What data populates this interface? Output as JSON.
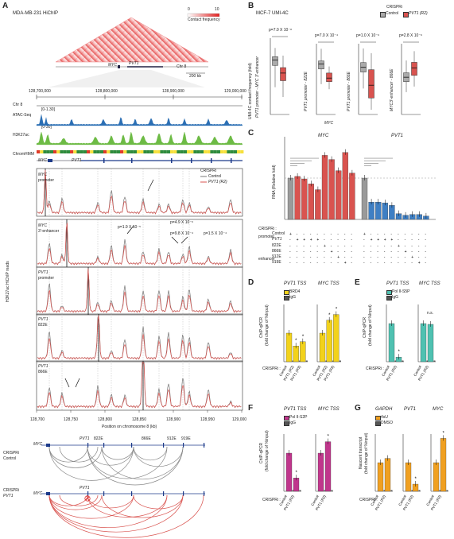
{
  "panels": {
    "A": "A",
    "B": "B",
    "C": "C",
    "D": "D",
    "E": "E",
    "F": "F",
    "G": "G"
  },
  "panelA": {
    "title": "MDA-MB-231 HiChIP",
    "legend_min": "0",
    "legend_max": "10",
    "legend_label": "Contact frequency",
    "gene_myc": "MYC",
    "gene_pvt1": "PVT1",
    "chr_label": "Chr 8",
    "scale_label": "200 kb",
    "ruler_ticks": [
      "128,700,000",
      "128,800,000",
      "128,900,000",
      "129,000,000"
    ],
    "tracks": [
      {
        "name": "Chr 8",
        "range": ""
      },
      {
        "name": "ATAC-Seq",
        "range": "[0-1.30]"
      },
      {
        "name": "H3K27ac",
        "range": "[0-30]"
      },
      {
        "name": "ChromHMM",
        "range": ""
      }
    ],
    "crispri_label": "CRISPRi",
    "legend_control": "Control",
    "legend_pvt1": "PVT1 (R2)",
    "ylabel": "H3K27ac HiChIP reads",
    "viewpoints": [
      {
        "gene": "MYC",
        "sub": "promoter"
      },
      {
        "gene": "MYC",
        "sub": "3'-enhancer"
      },
      {
        "gene": "PVT1",
        "sub": "promoter"
      },
      {
        "gene": "PVT1",
        "sub": "822E"
      },
      {
        "gene": "PVT1",
        "sub": "866E"
      }
    ],
    "pvals": [
      "p=1.9 X 10⁻⁵",
      "p=4.9 X 10⁻⁶",
      "p=9.8 X 10⁻⁴",
      "p=1.5 X 10⁻⁴"
    ],
    "x_ticks": [
      "128,700",
      "128,750",
      "128,800",
      "128,850",
      "128,900",
      "128,950",
      "129,000"
    ],
    "xlabel": "Position on chromosome 8 (kb)",
    "arc_gene_myc": "MYC",
    "arc_gene_pvt1": "PVT1",
    "enhancers": [
      "822E",
      "866E",
      "912E",
      "919E"
    ],
    "arc_control_label": [
      "CRISPRi",
      "Control"
    ],
    "arc_pvt1_label": [
      "CRISPRi",
      "PVT1"
    ]
  },
  "panelB": {
    "subtitle": "MCF-7 UMI-4C",
    "legend_title": "CRISPRi",
    "legend_control": "Control",
    "legend_pvt1": "PVT1 (R2)",
    "ylabel_main": "UMI-4C contact frequency (fold)",
    "plots": [
      {
        "pval": "p=7.0 X 10⁻⁸",
        "ylabel": "PVT1 promoter - MYC 3'-enhancer",
        "xlabel": "",
        "control": {
          "q1": 0.9,
          "med": 1.0,
          "q3": 1.06,
          "lo": 0.5,
          "hi": 1.22
        },
        "pvt1": {
          "q1": 0.62,
          "med": 0.76,
          "q3": 0.86,
          "lo": 0.32,
          "hi": 1.08
        },
        "ylim": [
          0,
          1.4
        ]
      },
      {
        "pval": "p=7.0 X 10⁻⁴",
        "ylabel": "PVT1 promoter - 822E",
        "xlabel": "MYC",
        "control": {
          "q1": 0.9,
          "med": 1.0,
          "q3": 1.06,
          "lo": 0.6,
          "hi": 1.3
        },
        "pvt1": {
          "q1": 0.65,
          "med": 0.72,
          "q3": 0.82,
          "lo": 0.5,
          "hi": 0.95
        },
        "ylim": [
          0,
          1.4
        ]
      },
      {
        "pval": "p=1.0 X 10⁻⁶",
        "ylabel": "PVT1 promoter - 866E",
        "xlabel": "",
        "control": {
          "q1": 0.9,
          "med": 1.0,
          "q3": 1.1,
          "lo": 0.55,
          "hi": 1.4
        },
        "pvt1": {
          "q1": 0.35,
          "med": 0.62,
          "q3": 0.95,
          "lo": 0.1,
          "hi": 1.3
        },
        "ylim": [
          0,
          1.5
        ]
      },
      {
        "pval": "p=2.8 X 10⁻⁶",
        "ylabel": "MYC3'-enhancer - 866E",
        "xlabel": "",
        "control": {
          "q1": 0.88,
          "med": 1.0,
          "q3": 1.12,
          "lo": 0.6,
          "hi": 1.45
        },
        "pvt1": {
          "q1": 1.05,
          "med": 1.25,
          "q3": 1.4,
          "lo": 0.75,
          "hi": 1.7
        },
        "ylim": [
          0,
          1.9
        ]
      }
    ]
  },
  "panelC": {
    "title_myc": "MYC",
    "title_pvt1": "PVT1",
    "ylabel": "RNA (Relative fold)",
    "row_labels": [
      "CRISPRi :",
      "promoter",
      "Control",
      "PVT1",
      "enhancer",
      "822E",
      "866E",
      "912E",
      "919E"
    ],
    "chart_data": {
      "type": "bar",
      "groups": [
        {
          "name": "MYC",
          "values": [
            1.0,
            1.04,
            0.98,
            0.86,
            0.72,
            1.55,
            1.45,
            1.18,
            1.62,
            1.12
          ],
          "colors": [
            "gray",
            "red",
            "red",
            "red",
            "red",
            "red",
            "red",
            "red",
            "red",
            "red"
          ]
        },
        {
          "name": "PVT1",
          "values": [
            1.0,
            0.42,
            0.42,
            0.4,
            0.34,
            0.14,
            0.1,
            0.12,
            0.12,
            0.08
          ],
          "colors": [
            "gray",
            "blue",
            "blue",
            "blue",
            "blue",
            "blue",
            "blue",
            "blue",
            "blue",
            "blue"
          ]
        }
      ],
      "ylim": [
        0,
        2.0
      ]
    }
  },
  "panelD": {
    "title1": "PVT1 TSS",
    "title2": "MYC TSS",
    "legend": [
      "BRD4",
      "IgG"
    ],
    "ylabel": [
      "ChIP-qPCR",
      "(fold change of %Input)"
    ],
    "xcats": [
      "Control",
      "PVT1 (R2)",
      "PVT1 (R3)"
    ],
    "crispri": "CRISPRi :",
    "chart_data": {
      "type": "bar",
      "series": [
        {
          "name": "PVT1 TSS",
          "values": [
            1.0,
            0.55,
            0.7
          ]
        },
        {
          "name": "MYC TSS",
          "values": [
            1.0,
            1.45,
            1.65
          ]
        }
      ],
      "ylim": [
        0,
        2.0
      ]
    }
  },
  "panelE": {
    "title1": "PVT1 TSS",
    "title2": "MYC TSS",
    "legend": [
      "Pol II-S5P",
      "IgG"
    ],
    "ylabel": [
      "ChIP-qPCR",
      "(fold change of %Input)"
    ],
    "xcats": [
      "Control",
      "PVT1 (R2)"
    ],
    "crispri": "CRISPRi :",
    "ns": "n.s.",
    "chart_data": {
      "type": "bar",
      "series": [
        {
          "name": "PVT1 TSS",
          "values": [
            1.0,
            0.12
          ]
        },
        {
          "name": "MYC TSS",
          "values": [
            1.0,
            0.98
          ]
        }
      ],
      "ylim": [
        0,
        1.5
      ]
    }
  },
  "panelF": {
    "title1": "PVT1 TSS",
    "title2": "MYC TSS",
    "legend": [
      "Pol II-S2P",
      "IgG"
    ],
    "ylabel": [
      "ChIP-qPCR",
      "(fold change of %Input)"
    ],
    "xcats": [
      "Control",
      "PVT1 (R2)"
    ],
    "crispri": "CRISPRi :",
    "chart_data": {
      "type": "bar",
      "series": [
        {
          "name": "PVT1 TSS",
          "values": [
            1.0,
            0.35
          ]
        },
        {
          "name": "MYC TSS",
          "values": [
            1.0,
            1.3
          ]
        }
      ],
      "ylim": [
        0,
        1.5
      ]
    }
  },
  "panelG": {
    "title1": "GAPDH",
    "title2": "PVT1",
    "title3": "MYC",
    "legend": [
      "4sU",
      "DMSO"
    ],
    "ylabel": [
      "Nascent transcript",
      "(fold change of %input)"
    ],
    "xcats": [
      "Control",
      "PVT1 (R2)"
    ],
    "crispri": "CRISPRi :",
    "chart_data": {
      "type": "bar",
      "series": [
        {
          "name": "GAPDH",
          "values": [
            1.0,
            1.15
          ]
        },
        {
          "name": "PVT1",
          "values": [
            1.0,
            0.25
          ]
        },
        {
          "name": "MYC",
          "values": [
            1.0,
            1.85
          ]
        }
      ],
      "ylim": [
        0,
        2.0
      ]
    }
  },
  "colors": {
    "red": "#d9534f",
    "gray": "#9a9a9a",
    "blue": "#3e7fc4",
    "yellow": "#f2d21b",
    "teal": "#4fc1b1",
    "magenta": "#c0368c",
    "orange": "#f0a021",
    "green": "#6dbb45",
    "atac": "#2b6fb4"
  }
}
